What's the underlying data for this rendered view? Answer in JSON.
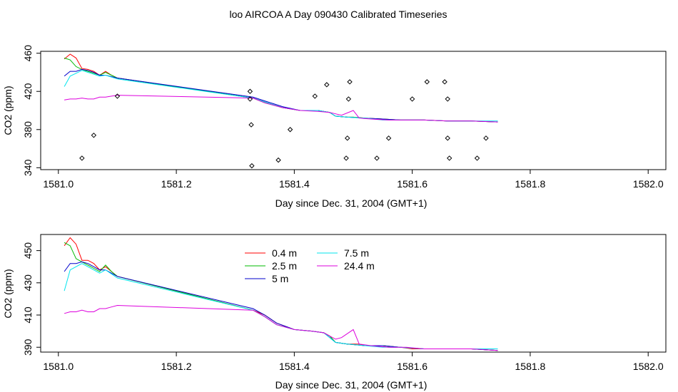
{
  "title": "loo AIRCOA A  Day 090430  Calibrated Timeseries",
  "chart_data": [
    {
      "type": "scatter",
      "xlabel": "Day since Dec. 31, 2004 (GMT+1)",
      "ylabel": "CO2 (ppm)",
      "xlim": [
        1580.97,
        1582.03
      ],
      "ylim": [
        338,
        462
      ],
      "xticks": [
        "1581.0",
        "1581.2",
        "1581.4",
        "1581.6",
        "1581.8",
        "1582.0"
      ],
      "yticks": [
        "340",
        "380",
        "420",
        "460"
      ],
      "grid": false,
      "points": {
        "x": [
          1581.04,
          1581.06,
          1581.1,
          1581.325,
          1581.325,
          1581.327,
          1581.328,
          1581.373,
          1581.393,
          1581.435,
          1581.455,
          1581.488,
          1581.49,
          1581.492,
          1581.494,
          1581.54,
          1581.56,
          1581.6,
          1581.625,
          1581.655,
          1581.66,
          1581.66,
          1581.663,
          1581.71,
          1581.725
        ],
        "y": [
          350,
          374,
          415,
          420,
          412,
          385,
          342,
          348,
          380,
          415,
          427,
          350,
          371,
          412,
          430,
          350,
          371,
          412,
          430,
          430,
          412,
          371,
          350,
          350,
          371
        ]
      },
      "series": [
        {
          "name": "0.4 m",
          "color": "#ff0000",
          "x": [
            1581.01,
            1581.02,
            1581.03,
            1581.04,
            1581.05,
            1581.06,
            1581.07,
            1581.08,
            1581.09,
            1581.1,
            1581.33,
            1581.35,
            1581.38,
            1581.41,
            1581.44,
            1581.46,
            1581.47,
            1581.49,
            1581.5,
            1581.52,
            1581.55,
            1581.58,
            1581.62,
            1581.66,
            1581.7,
            1581.745
          ],
          "y": [
            454,
            459,
            455,
            444,
            443,
            441,
            437,
            441,
            437,
            434,
            413,
            409,
            403,
            400,
            400,
            398,
            394,
            393,
            393,
            392,
            391,
            390,
            390,
            389,
            389,
            388
          ]
        },
        {
          "name": "2.5 m",
          "color": "#00bb00",
          "x": [
            1581.01,
            1581.02,
            1581.03,
            1581.04,
            1581.05,
            1581.06,
            1581.07,
            1581.08,
            1581.09,
            1581.1,
            1581.33,
            1581.35,
            1581.38,
            1581.41,
            1581.44,
            1581.46,
            1581.47,
            1581.49,
            1581.5,
            1581.52,
            1581.55,
            1581.58,
            1581.62,
            1581.66,
            1581.7,
            1581.745
          ],
          "y": [
            455,
            453,
            446,
            443,
            441,
            439,
            437,
            440,
            437,
            434,
            413,
            408,
            403,
            400,
            400,
            398,
            394,
            393,
            393,
            392,
            391,
            390,
            390,
            389,
            389,
            388
          ]
        },
        {
          "name": "5 m",
          "color": "#0000cc",
          "x": [
            1581.01,
            1581.02,
            1581.03,
            1581.04,
            1581.05,
            1581.06,
            1581.07,
            1581.08,
            1581.1,
            1581.33,
            1581.35,
            1581.38,
            1581.41,
            1581.44,
            1581.46,
            1581.47,
            1581.49,
            1581.52,
            1581.55,
            1581.58,
            1581.62,
            1581.66,
            1581.7,
            1581.745
          ],
          "y": [
            436,
            441,
            441,
            443,
            442,
            440,
            437,
            437,
            434,
            414,
            410,
            404,
            400,
            400,
            398,
            394,
            393,
            392,
            391,
            390,
            390,
            389,
            389,
            388
          ]
        },
        {
          "name": "7.5 m",
          "color": "#00e5ee",
          "x": [
            1581.01,
            1581.02,
            1581.03,
            1581.04,
            1581.05,
            1581.06,
            1581.07,
            1581.08,
            1581.1,
            1581.33,
            1581.35,
            1581.38,
            1581.41,
            1581.44,
            1581.46,
            1581.47,
            1581.49,
            1581.52,
            1581.55,
            1581.58,
            1581.62,
            1581.66,
            1581.7,
            1581.745
          ],
          "y": [
            425,
            436,
            439,
            442,
            440,
            438,
            436,
            437,
            433,
            413,
            409,
            403,
            400,
            400,
            398,
            394,
            393,
            392,
            390,
            390,
            390,
            389,
            389,
            389
          ]
        },
        {
          "name": "24.4 m",
          "color": "#dd00dd",
          "x": [
            1581.01,
            1581.02,
            1581.03,
            1581.04,
            1581.05,
            1581.06,
            1581.07,
            1581.08,
            1581.09,
            1581.1,
            1581.33,
            1581.35,
            1581.38,
            1581.41,
            1581.44,
            1581.46,
            1581.48,
            1581.5,
            1581.51,
            1581.53,
            1581.56,
            1581.59,
            1581.62,
            1581.66,
            1581.7,
            1581.745
          ],
          "y": [
            411,
            412,
            412,
            413,
            412,
            412,
            414,
            414,
            415,
            416,
            413,
            408,
            403,
            400,
            399,
            398,
            395,
            400,
            392,
            391,
            390,
            390,
            390,
            389,
            389,
            388
          ]
        }
      ]
    },
    {
      "type": "line",
      "xlabel": "Day since Dec. 31, 2004 (GMT+1)",
      "ylabel": "CO2 (ppm)",
      "xlim": [
        1580.97,
        1582.03
      ],
      "ylim": [
        387,
        460
      ],
      "xticks": [
        "1581.0",
        "1581.2",
        "1581.4",
        "1581.6",
        "1581.8",
        "1582.0"
      ],
      "yticks": [
        "390",
        "410",
        "430",
        "450"
      ],
      "grid": false,
      "legend": "top-center",
      "series": [
        {
          "name": "0.4 m",
          "color": "#ff0000",
          "x": [
            1581.01,
            1581.02,
            1581.03,
            1581.04,
            1581.05,
            1581.06,
            1581.07,
            1581.08,
            1581.09,
            1581.1,
            1581.33,
            1581.35,
            1581.37,
            1581.4,
            1581.43,
            1581.45,
            1581.46,
            1581.47,
            1581.49,
            1581.5,
            1581.51,
            1581.52,
            1581.55,
            1581.58,
            1581.6,
            1581.62,
            1581.66,
            1581.7,
            1581.745
          ],
          "y": [
            453,
            458,
            454,
            444,
            444,
            442,
            438,
            440,
            437,
            434,
            413,
            410,
            405,
            401,
            400,
            399,
            397,
            393,
            392,
            392,
            392,
            391,
            391,
            390,
            389,
            389,
            389,
            389,
            388
          ]
        },
        {
          "name": "2.5 m",
          "color": "#00bb00",
          "x": [
            1581.01,
            1581.02,
            1581.03,
            1581.04,
            1581.05,
            1581.06,
            1581.07,
            1581.08,
            1581.09,
            1581.1,
            1581.33,
            1581.35,
            1581.37,
            1581.4,
            1581.43,
            1581.45,
            1581.46,
            1581.47,
            1581.49,
            1581.52,
            1581.55,
            1581.58,
            1581.62,
            1581.66,
            1581.7,
            1581.745
          ],
          "y": [
            455,
            453,
            445,
            443,
            441,
            439,
            437,
            441,
            437,
            434,
            413,
            409,
            404,
            401,
            400,
            399,
            397,
            393,
            392,
            391,
            391,
            390,
            389,
            389,
            389,
            388
          ]
        },
        {
          "name": "5 m",
          "color": "#0000cc",
          "x": [
            1581.01,
            1581.02,
            1581.03,
            1581.04,
            1581.05,
            1581.06,
            1581.07,
            1581.08,
            1581.1,
            1581.33,
            1581.35,
            1581.37,
            1581.4,
            1581.43,
            1581.45,
            1581.47,
            1581.49,
            1581.52,
            1581.55,
            1581.58,
            1581.62,
            1581.66,
            1581.7,
            1581.745
          ],
          "y": [
            437,
            442,
            442,
            443,
            442,
            440,
            438,
            438,
            434,
            414,
            410,
            405,
            401,
            400,
            399,
            393,
            392,
            391,
            391,
            390,
            389,
            389,
            389,
            388
          ]
        },
        {
          "name": "7.5 m",
          "color": "#00e5ee",
          "x": [
            1581.01,
            1581.02,
            1581.03,
            1581.04,
            1581.05,
            1581.06,
            1581.07,
            1581.08,
            1581.1,
            1581.33,
            1581.35,
            1581.37,
            1581.4,
            1581.43,
            1581.45,
            1581.47,
            1581.49,
            1581.52,
            1581.55,
            1581.58,
            1581.62,
            1581.66,
            1581.7,
            1581.745
          ],
          "y": [
            425,
            438,
            440,
            442,
            440,
            438,
            436,
            438,
            433,
            413,
            409,
            404,
            401,
            400,
            399,
            393,
            392,
            391,
            390,
            390,
            389,
            389,
            389,
            389
          ]
        },
        {
          "name": "24.4 m",
          "color": "#dd00dd",
          "x": [
            1581.01,
            1581.02,
            1581.03,
            1581.04,
            1581.05,
            1581.06,
            1581.07,
            1581.08,
            1581.09,
            1581.1,
            1581.33,
            1581.35,
            1581.37,
            1581.4,
            1581.43,
            1581.45,
            1581.47,
            1581.48,
            1581.5,
            1581.51,
            1581.53,
            1581.56,
            1581.59,
            1581.62,
            1581.66,
            1581.7,
            1581.745
          ],
          "y": [
            411,
            412,
            412,
            413,
            412,
            412,
            414,
            414,
            415,
            416,
            413,
            409,
            404,
            401,
            400,
            399,
            395,
            396,
            401,
            392,
            391,
            390,
            390,
            389,
            389,
            389,
            388
          ]
        }
      ]
    }
  ]
}
